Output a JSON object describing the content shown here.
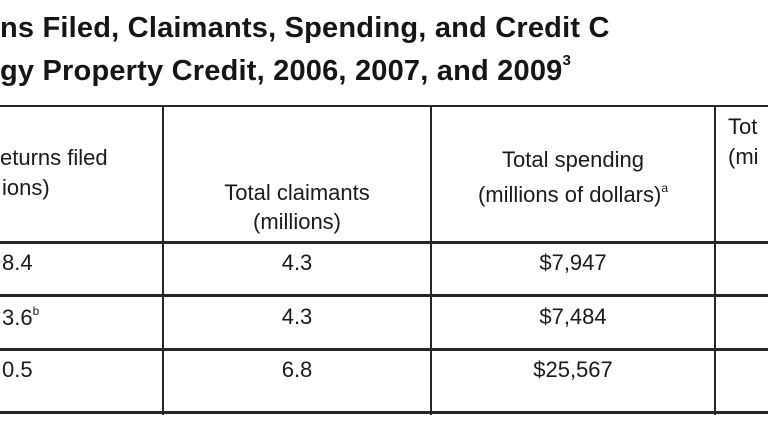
{
  "title": {
    "line1": "ns Filed, Claimants, Spending, and Credit C",
    "line2": "gy Property Credit, 2006, 2007, and 2009",
    "line2_footnote": "3"
  },
  "table": {
    "headers": {
      "returns": [
        "eturns filed",
        "ions)"
      ],
      "claimants": [
        "Total claimants",
        "(millions)"
      ],
      "spending": [
        "Total spending",
        "(millions of dollars)"
      ],
      "spending_footnote": "a",
      "partial": [
        "Tot",
        "(mi"
      ]
    },
    "rows": [
      {
        "returns": "8.4",
        "returns_footnote": "",
        "claimants": "4.3",
        "spending": "$7,947"
      },
      {
        "returns": "3.6",
        "returns_footnote": "b",
        "claimants": "4.3",
        "spending": "$7,484"
      },
      {
        "returns": "0.5",
        "returns_footnote": "",
        "claimants": "6.8",
        "spending": "$25,567"
      }
    ]
  }
}
